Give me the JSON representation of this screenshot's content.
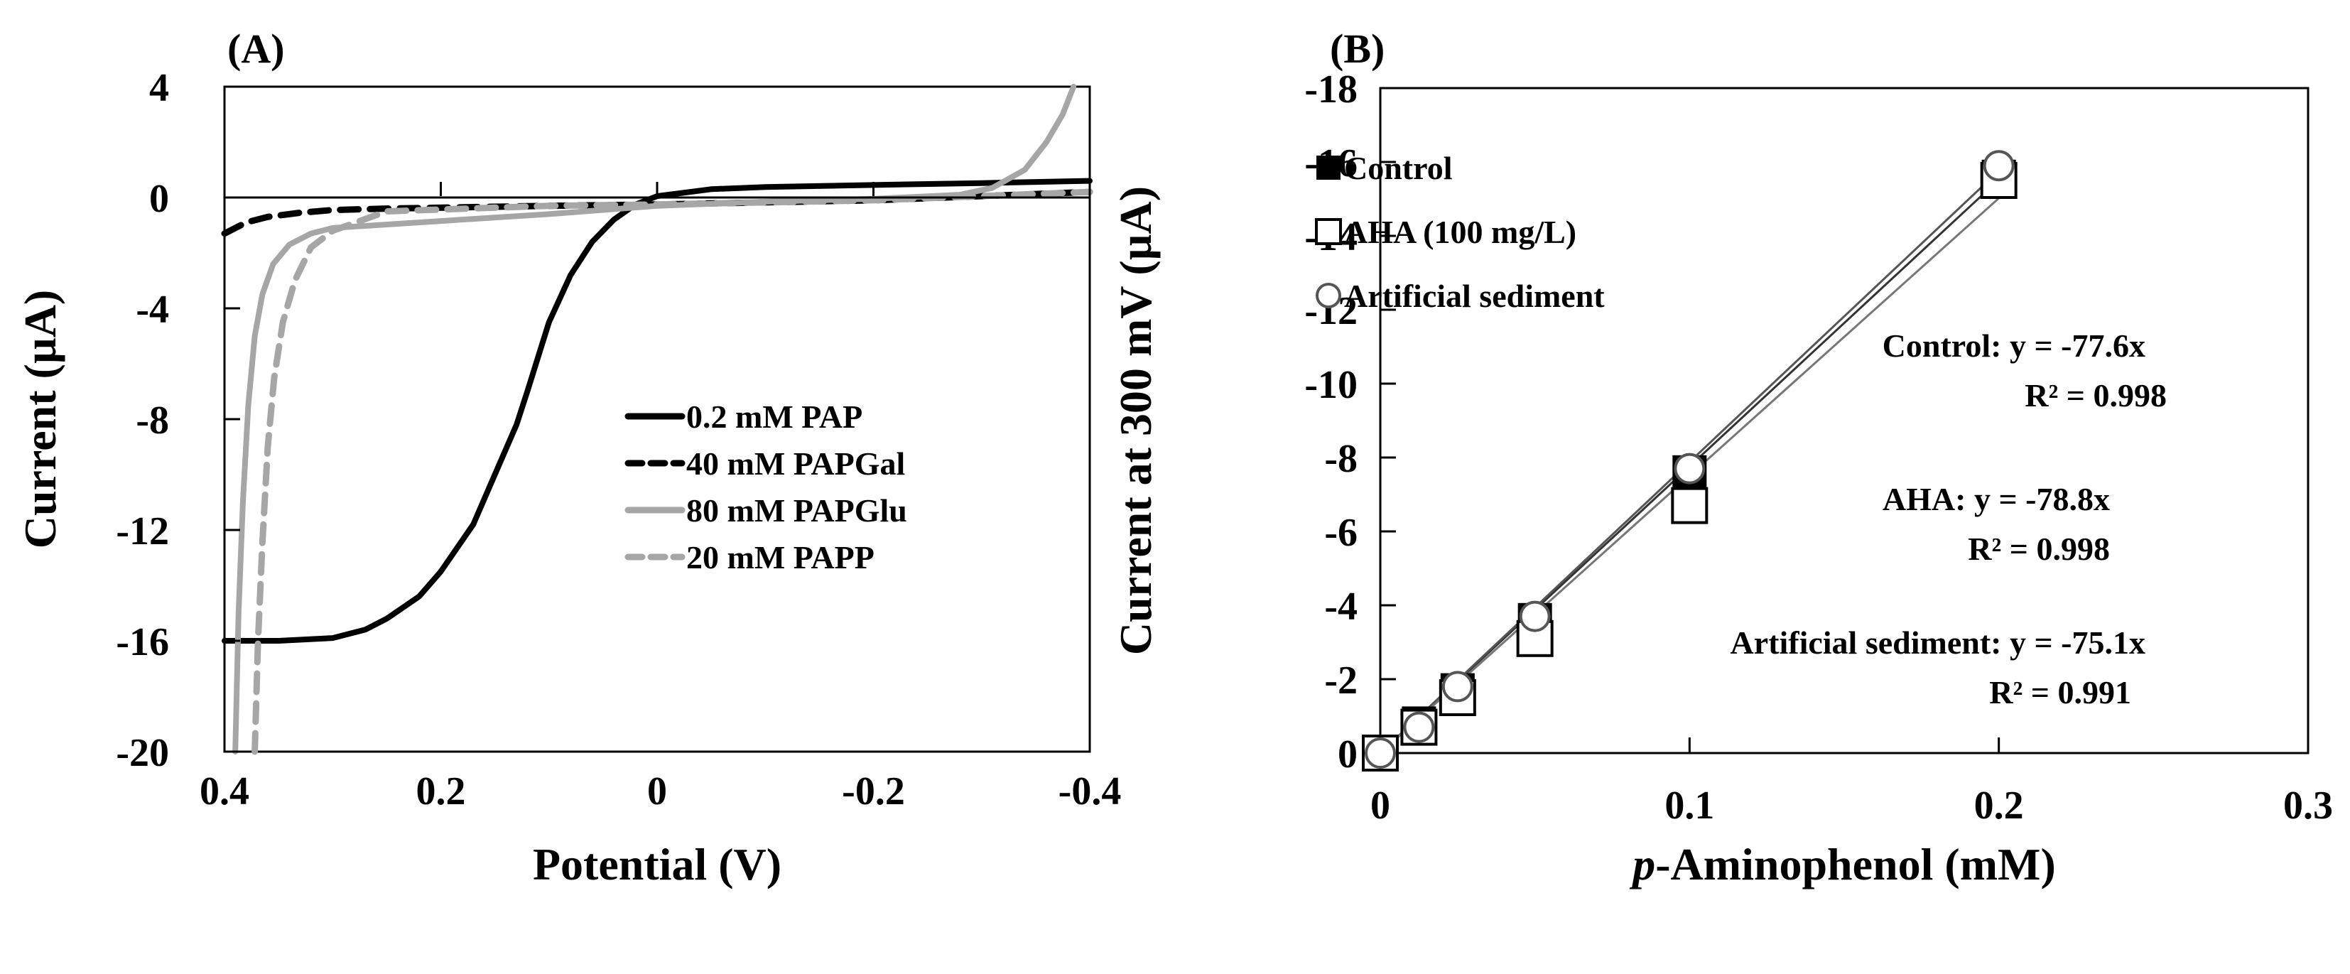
{
  "chart_data": [
    {
      "type": "line",
      "panel_label": "(A)",
      "xlabel": "Potential (V)",
      "ylabel": "Current (µA)",
      "xlim": [
        0.4,
        -0.4
      ],
      "ylim": [
        -20,
        4
      ],
      "x_reversed": true,
      "xticks": [
        "0.4",
        "0.2",
        "0",
        "-0.2",
        "-0.4"
      ],
      "xtick_values": [
        0.4,
        0.2,
        0,
        -0.2,
        -0.4
      ],
      "yticks": [
        "4",
        "0",
        "-4",
        "-8",
        "-12",
        "-16",
        "-20"
      ],
      "ytick_values": [
        4,
        0,
        -4,
        -8,
        -12,
        -16,
        -20
      ],
      "legend_position": "center-right",
      "series": [
        {
          "name": "0.2 mM PAP",
          "color": "#000000",
          "dash": "solid",
          "x": [
            0.4,
            0.35,
            0.3,
            0.27,
            0.25,
            0.22,
            0.2,
            0.17,
            0.15,
            0.13,
            0.12,
            0.1,
            0.08,
            0.06,
            0.04,
            0.02,
            0,
            -0.05,
            -0.1,
            -0.2,
            -0.3,
            -0.4
          ],
          "y": [
            -16,
            -16,
            -15.9,
            -15.6,
            -15.2,
            -14.4,
            -13.5,
            -11.8,
            -10,
            -8.2,
            -7,
            -4.5,
            -2.8,
            -1.6,
            -0.8,
            -0.25,
            0.05,
            0.3,
            0.38,
            0.45,
            0.52,
            0.6
          ]
        },
        {
          "name": "40 mM PAPGal",
          "color": "#000000",
          "dash": "dashed",
          "x": [
            0.4,
            0.38,
            0.36,
            0.33,
            0.3,
            0.25,
            0.1,
            0,
            -0.2,
            -0.4
          ],
          "y": [
            -1.3,
            -0.9,
            -0.7,
            -0.55,
            -0.45,
            -0.4,
            -0.3,
            -0.25,
            -0.1,
            0.2
          ]
        },
        {
          "name": "80 mM PAPGlu",
          "color": "#a6a6a6",
          "dash": "solid",
          "x": [
            0.39,
            0.387,
            0.383,
            0.378,
            0.372,
            0.365,
            0.355,
            0.34,
            0.32,
            0.3,
            0.2,
            0.1,
            0,
            -0.1,
            -0.2,
            -0.28,
            -0.31,
            -0.34,
            -0.36,
            -0.375,
            -0.385
          ],
          "y": [
            -20,
            -15,
            -11,
            -7.5,
            -5,
            -3.5,
            -2.4,
            -1.7,
            -1.3,
            -1.1,
            -0.85,
            -0.6,
            -0.3,
            -0.15,
            -0.05,
            0.1,
            0.35,
            1.0,
            2.0,
            3.0,
            4.0
          ]
        },
        {
          "name": "20 mM PAPP",
          "color": "#a6a6a6",
          "dash": "dashed",
          "x": [
            0.372,
            0.369,
            0.365,
            0.36,
            0.354,
            0.346,
            0.335,
            0.32,
            0.3,
            0.25,
            0.1,
            0,
            -0.2,
            -0.4
          ],
          "y": [
            -20,
            -16,
            -12.5,
            -9,
            -6.5,
            -4.5,
            -3,
            -1.8,
            -1.2,
            -0.5,
            -0.3,
            -0.25,
            -0.1,
            0.2
          ]
        }
      ]
    },
    {
      "type": "scatter",
      "panel_label": "(B)",
      "xlabel_italic": "p",
      "xlabel": "-Aminophenol (mM)",
      "ylabel": "Current at 300 mV (µA)",
      "xlim": [
        0,
        0.3
      ],
      "ylim": [
        0,
        -18
      ],
      "y_reversed": true,
      "xticks": [
        "0",
        "0.1",
        "0.2",
        "0.3"
      ],
      "xtick_values": [
        0,
        0.1,
        0.2,
        0.3
      ],
      "yticks": [
        "-18",
        "-16",
        "-14",
        "-12",
        "-10",
        "-8",
        "-6",
        "-4",
        "-2",
        "0"
      ],
      "ytick_values": [
        -18,
        -16,
        -14,
        -12,
        -10,
        -8,
        -6,
        -4,
        -2,
        0
      ],
      "legend_position": "top-left",
      "series": [
        {
          "name": "Control",
          "marker": "filled-square",
          "color": "#000000",
          "x": [
            0,
            0.0125,
            0.025,
            0.05,
            0.1,
            0.2
          ],
          "y": [
            0,
            -0.8,
            -1.7,
            -3.6,
            -7.6,
            -15.6
          ],
          "fit_slope": -77.6
        },
        {
          "name": "AHA (100 mg/L)",
          "marker": "open-square",
          "color": "#000000",
          "x": [
            0,
            0.0125,
            0.025,
            0.05,
            0.1,
            0.2
          ],
          "y": [
            0,
            -0.7,
            -1.5,
            -3.1,
            -6.7,
            -15.5
          ],
          "fit_slope": -78.8
        },
        {
          "name": "Artificial sediment",
          "marker": "open-circle",
          "color": "#000000",
          "x": [
            0,
            0.0125,
            0.025,
            0.05,
            0.1,
            0.2
          ],
          "y": [
            0,
            -0.7,
            -1.8,
            -3.7,
            -7.7,
            -15.9
          ],
          "fit_slope": -75.1
        }
      ],
      "annotations": [
        {
          "line1": "Control: y = -77.6x",
          "line2": "R² = 0.998"
        },
        {
          "line1": "AHA: y = -78.8x",
          "line2": "R² = 0.998"
        },
        {
          "line1": "Artificial sediment: y = -75.1x",
          "line2": "R² = 0.991"
        }
      ]
    }
  ]
}
